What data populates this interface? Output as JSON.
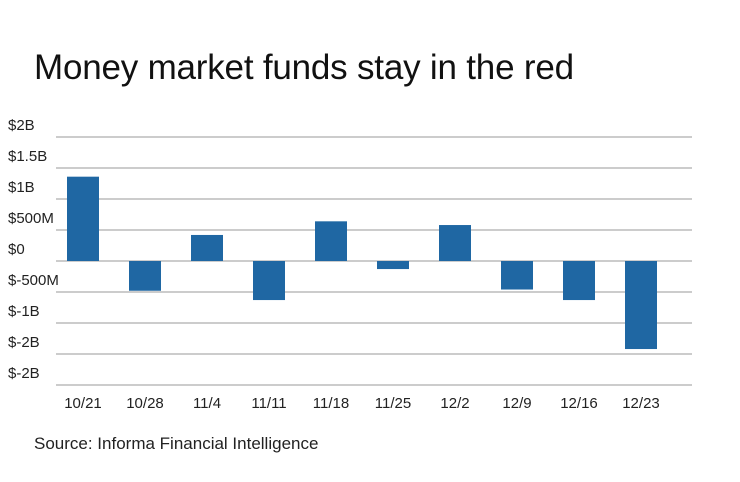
{
  "title": "Money market funds stay in the red",
  "source": "Source: Informa Financial Intelligence",
  "colors": {
    "bar": "#1f67a3",
    "grid": "#999999",
    "text": "#222222"
  },
  "chart_data": {
    "type": "bar",
    "title": "Money market funds stay in the red",
    "xlabel": "",
    "ylabel": "",
    "categories": [
      "10/21",
      "10/28",
      "11/4",
      "11/11",
      "11/18",
      "11/25",
      "12/2",
      "12/9",
      "12/16",
      "12/23"
    ],
    "values": [
      1.36,
      -0.48,
      0.42,
      -0.63,
      0.64,
      -0.13,
      0.58,
      -0.46,
      -0.63,
      -1.42
    ],
    "value_units": "billions USD",
    "y_tick_labels": [
      "$2B",
      "$1.5B",
      "$1B",
      "$500M",
      "$0",
      "$-500M",
      "$-1B",
      "$-2B",
      "$-2B"
    ],
    "grid": true
  }
}
